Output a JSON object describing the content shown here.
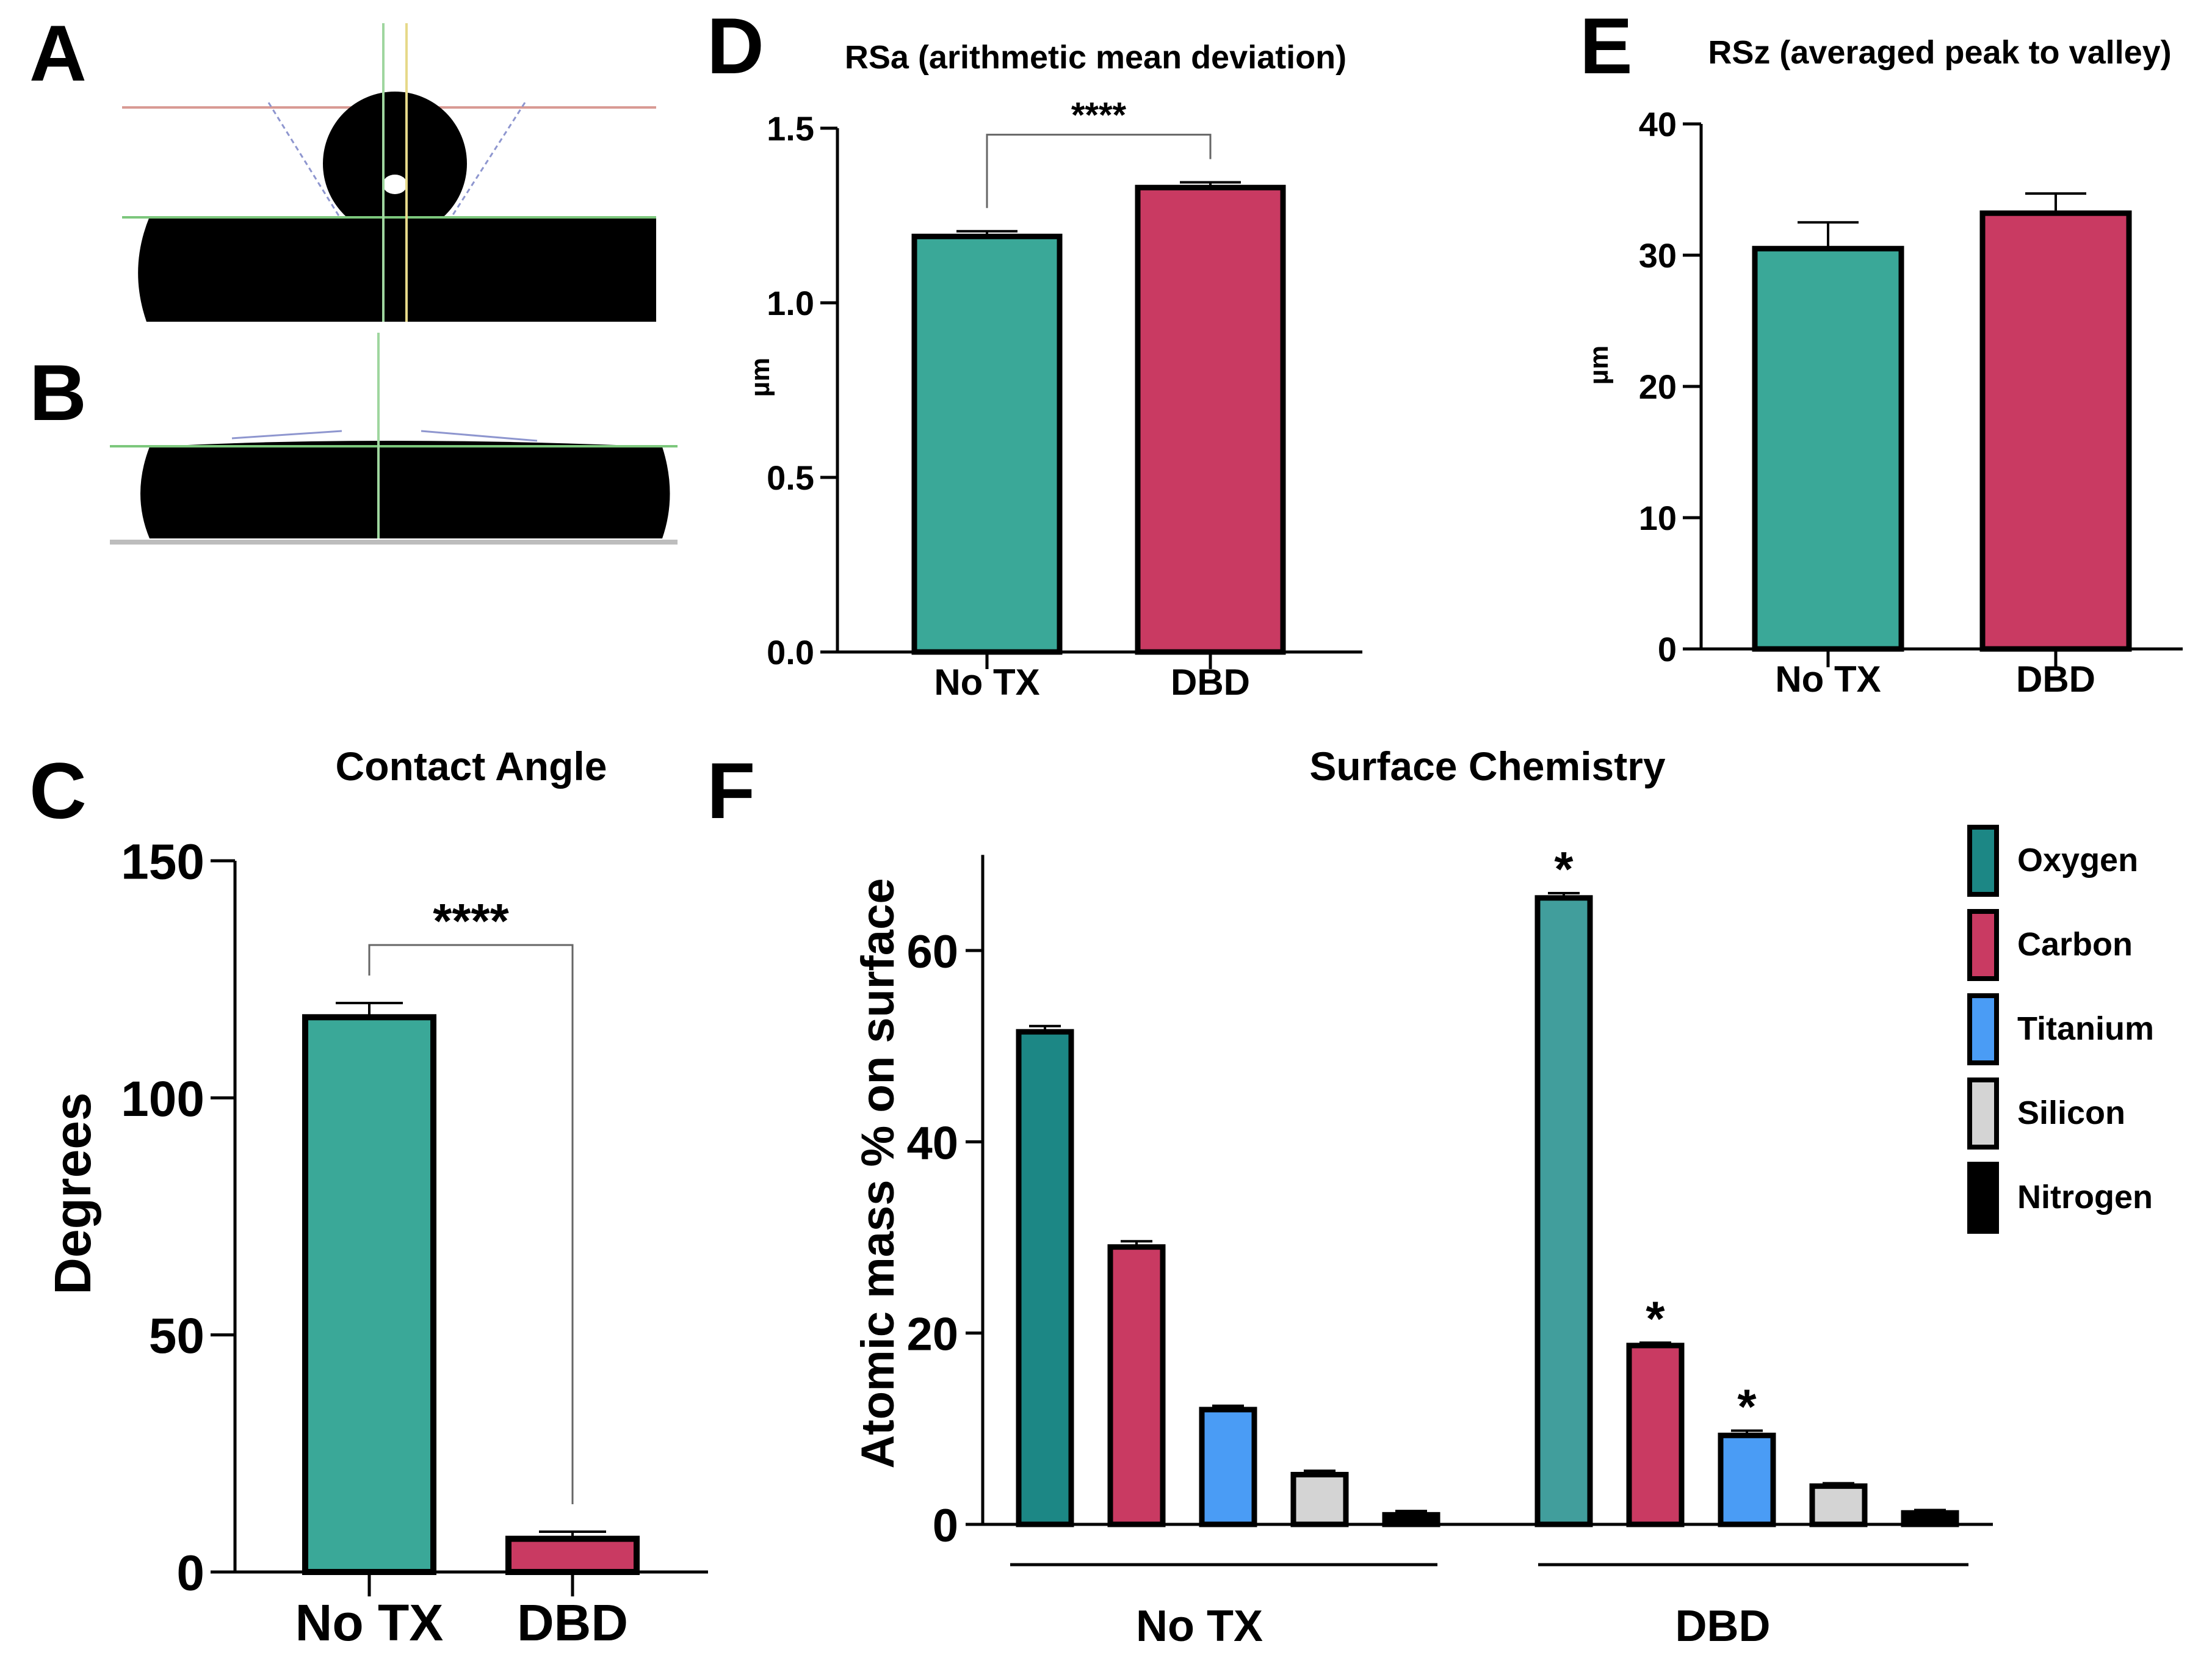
{
  "colors": {
    "teal": "#3aa898",
    "teal_dark": "#1c8785",
    "teal_mid": "#419e9c",
    "crimson": "#c93a62",
    "blue": "#4a9cf5",
    "silver": "#d4d4d4",
    "black": "#000000",
    "outline": "#000000"
  },
  "panels": {
    "A": {
      "letter": "A"
    },
    "B": {
      "letter": "B"
    },
    "C": {
      "letter": "C"
    },
    "D": {
      "letter": "D"
    },
    "E": {
      "letter": "E"
    },
    "F": {
      "letter": "F"
    }
  },
  "chart_data": [
    {
      "panel": "C",
      "type": "bar",
      "title": "Contact Angle",
      "ylabel": "Degrees",
      "xlabel": "",
      "ylim": [
        0,
        150
      ],
      "yticks": [
        "0",
        "50",
        "100",
        "150"
      ],
      "categories": [
        "No TX",
        "DBD"
      ],
      "values": [
        117,
        7
      ],
      "errors": [
        3,
        1.5
      ],
      "significance": "****",
      "grid": false
    },
    {
      "panel": "D",
      "type": "bar",
      "title": "RSa (arithmetic mean deviation)",
      "ylabel": "µm",
      "xlabel": "",
      "ylim": [
        0,
        1.5
      ],
      "yticks": [
        "0.0",
        "0.5",
        "1.0",
        "1.5"
      ],
      "categories": [
        "No TX",
        "DBD"
      ],
      "values": [
        1.19,
        1.33
      ],
      "errors": [
        0.015,
        0.015
      ],
      "significance": "****",
      "grid": false
    },
    {
      "panel": "E",
      "type": "bar",
      "title": "RSz (averaged peak to valley)",
      "ylabel": "µm",
      "xlabel": "",
      "ylim": [
        0,
        40
      ],
      "yticks": [
        "0",
        "10",
        "20",
        "30",
        "40"
      ],
      "categories": [
        "No TX",
        "DBD"
      ],
      "values": [
        30.5,
        33.2
      ],
      "errors": [
        2.0,
        1.5
      ],
      "significance": "",
      "grid": false
    },
    {
      "panel": "F",
      "type": "bar",
      "title": "Surface Chemistry",
      "ylabel": "Atomic mass % on surface",
      "xlabel": "",
      "ylim": [
        0,
        70
      ],
      "yticks": [
        "0",
        "20",
        "40",
        "60"
      ],
      "categories": [
        "No TX",
        "DBD"
      ],
      "legend_position": "right",
      "series": [
        {
          "name": "Oxygen",
          "values": [
            51.5,
            65.5
          ],
          "errors": [
            0.6,
            0.5
          ],
          "significance": [
            "",
            "*"
          ]
        },
        {
          "name": "Carbon",
          "values": [
            29.0,
            18.7
          ],
          "errors": [
            0.6,
            0.3
          ],
          "significance": [
            "",
            "*"
          ]
        },
        {
          "name": "Titanium",
          "values": [
            12.0,
            9.3
          ],
          "errors": [
            0.4,
            0.5
          ],
          "significance": [
            "",
            "*"
          ]
        },
        {
          "name": "Silicon",
          "values": [
            5.2,
            4.0
          ],
          "errors": [
            0.4,
            0.3
          ],
          "significance": [
            "",
            ""
          ]
        },
        {
          "name": "Nitrogen",
          "values": [
            1.0,
            1.2
          ],
          "errors": [
            0.4,
            0.3
          ],
          "significance": [
            "",
            ""
          ]
        }
      ],
      "grid": false
    }
  ]
}
